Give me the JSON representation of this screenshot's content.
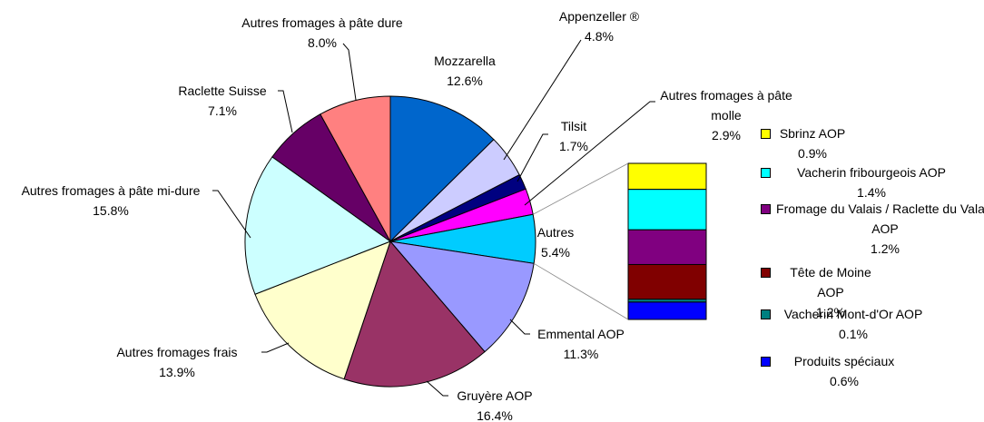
{
  "chart_data": {
    "type": "pie-of-bar",
    "categories": [
      "Mozzarella",
      "Appenzeller ®",
      "Tilsit",
      "Autres fromages à pâte molle",
      "Autres",
      "Emmental AOP",
      "Gruyère AOP",
      "Autres fromages frais",
      "Autres fromages à pâte mi-dure",
      "Raclette Suisse",
      "Autres fromages à pâte dure"
    ],
    "values": [
      12.6,
      4.8,
      1.7,
      2.9,
      5.4,
      11.3,
      16.4,
      13.9,
      15.8,
      7.1,
      8.0
    ],
    "value_labels": [
      "12.6%",
      "4.8%",
      "1.7%",
      "2.9%",
      "5.4%",
      "11.3%",
      "16.4%",
      "13.9%",
      "15.8%",
      "7.1%",
      "8.0%"
    ],
    "colors": [
      "#0066cc",
      "#ccccff",
      "#000080",
      "#ff00ff",
      "#00ccff",
      "#9999ff",
      "#993366",
      "#ffffcc",
      "#ccffff",
      "#660066",
      "#ff8080"
    ],
    "bar": {
      "categories": [
        "Sbrinz AOP",
        "Vacherin fribourgeois AOP",
        "Fromage du Valais / Raclette du Valais AOP",
        "Tête de Moine AOP",
        "Vacherin Mont-d'Or AOP",
        "Produits spéciaux"
      ],
      "values": [
        0.9,
        1.4,
        1.2,
        1.2,
        0.1,
        0.6
      ],
      "value_labels": [
        "0.9%",
        "1.4%",
        "1.2%",
        "1.2%",
        "0.1%",
        "0.6%"
      ],
      "colors": [
        "#ffff00",
        "#00ffff",
        "#800080",
        "#800000",
        "#008080",
        "#0000ff"
      ]
    }
  }
}
